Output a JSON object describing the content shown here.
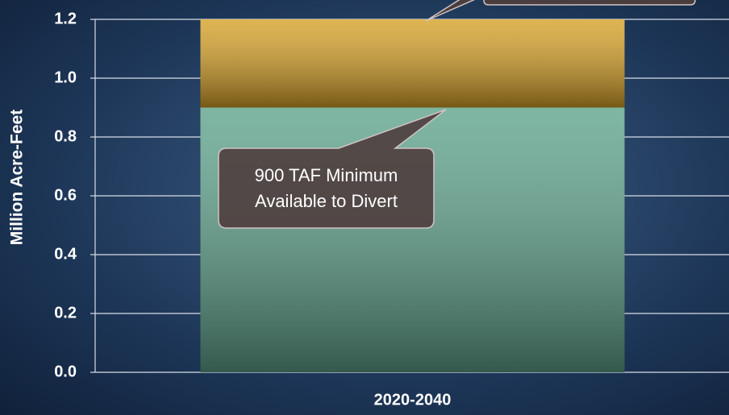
{
  "chart_data": {
    "type": "stacked_bar",
    "y_label": "Million Acre-Feet",
    "categories": [
      "2020-2040"
    ],
    "series": [
      {
        "color": "#5fa38c",
        "values": [
          0.9
        ]
      },
      {
        "color": "#d6a127",
        "values": [
          0.3
        ]
      }
    ],
    "ylim": [
      0,
      1.2
    ],
    "yticks": [
      {
        "value": 0,
        "label": "0.0"
      },
      0.2,
      0.4,
      0.6,
      0.8,
      {
        "value": 1,
        "label": "1.0"
      },
      1.2
    ],
    "grid": true,
    "annotations": [
      "900 TAF Minimum Available to Divert"
    ]
  }
}
